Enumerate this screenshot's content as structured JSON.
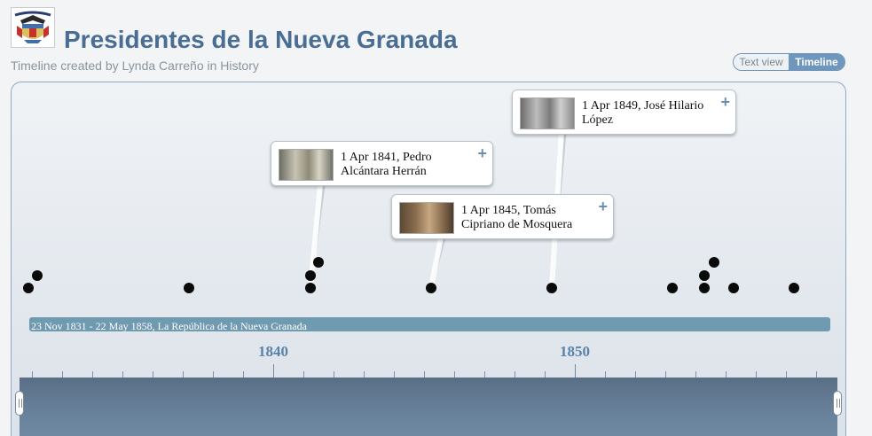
{
  "page": {
    "title": "Presidentes de la Nueva Granada",
    "subtitle": "Timeline created by Lynda Carreño in History"
  },
  "view_toggle": {
    "text_view": "Text view",
    "timeline_view": "Timeline",
    "active": "Timeline"
  },
  "events": [
    {
      "label": "1 Apr 1841, Pedro Alcántara Herrán"
    },
    {
      "label": "1 Apr 1845, Tomás Cipriano de Mosquera"
    },
    {
      "label": "1 Apr 1849, José Hilario López"
    }
  ],
  "era_band": {
    "label": "23 Nov 1831 - 22 May 1858, La República de la Nueva Granada"
  },
  "axis": {
    "labels": [
      "1840",
      "1850"
    ]
  },
  "colors": {
    "title": "#4a6e93",
    "accent": "#6f97bd",
    "dot": "#0a0a0a"
  }
}
